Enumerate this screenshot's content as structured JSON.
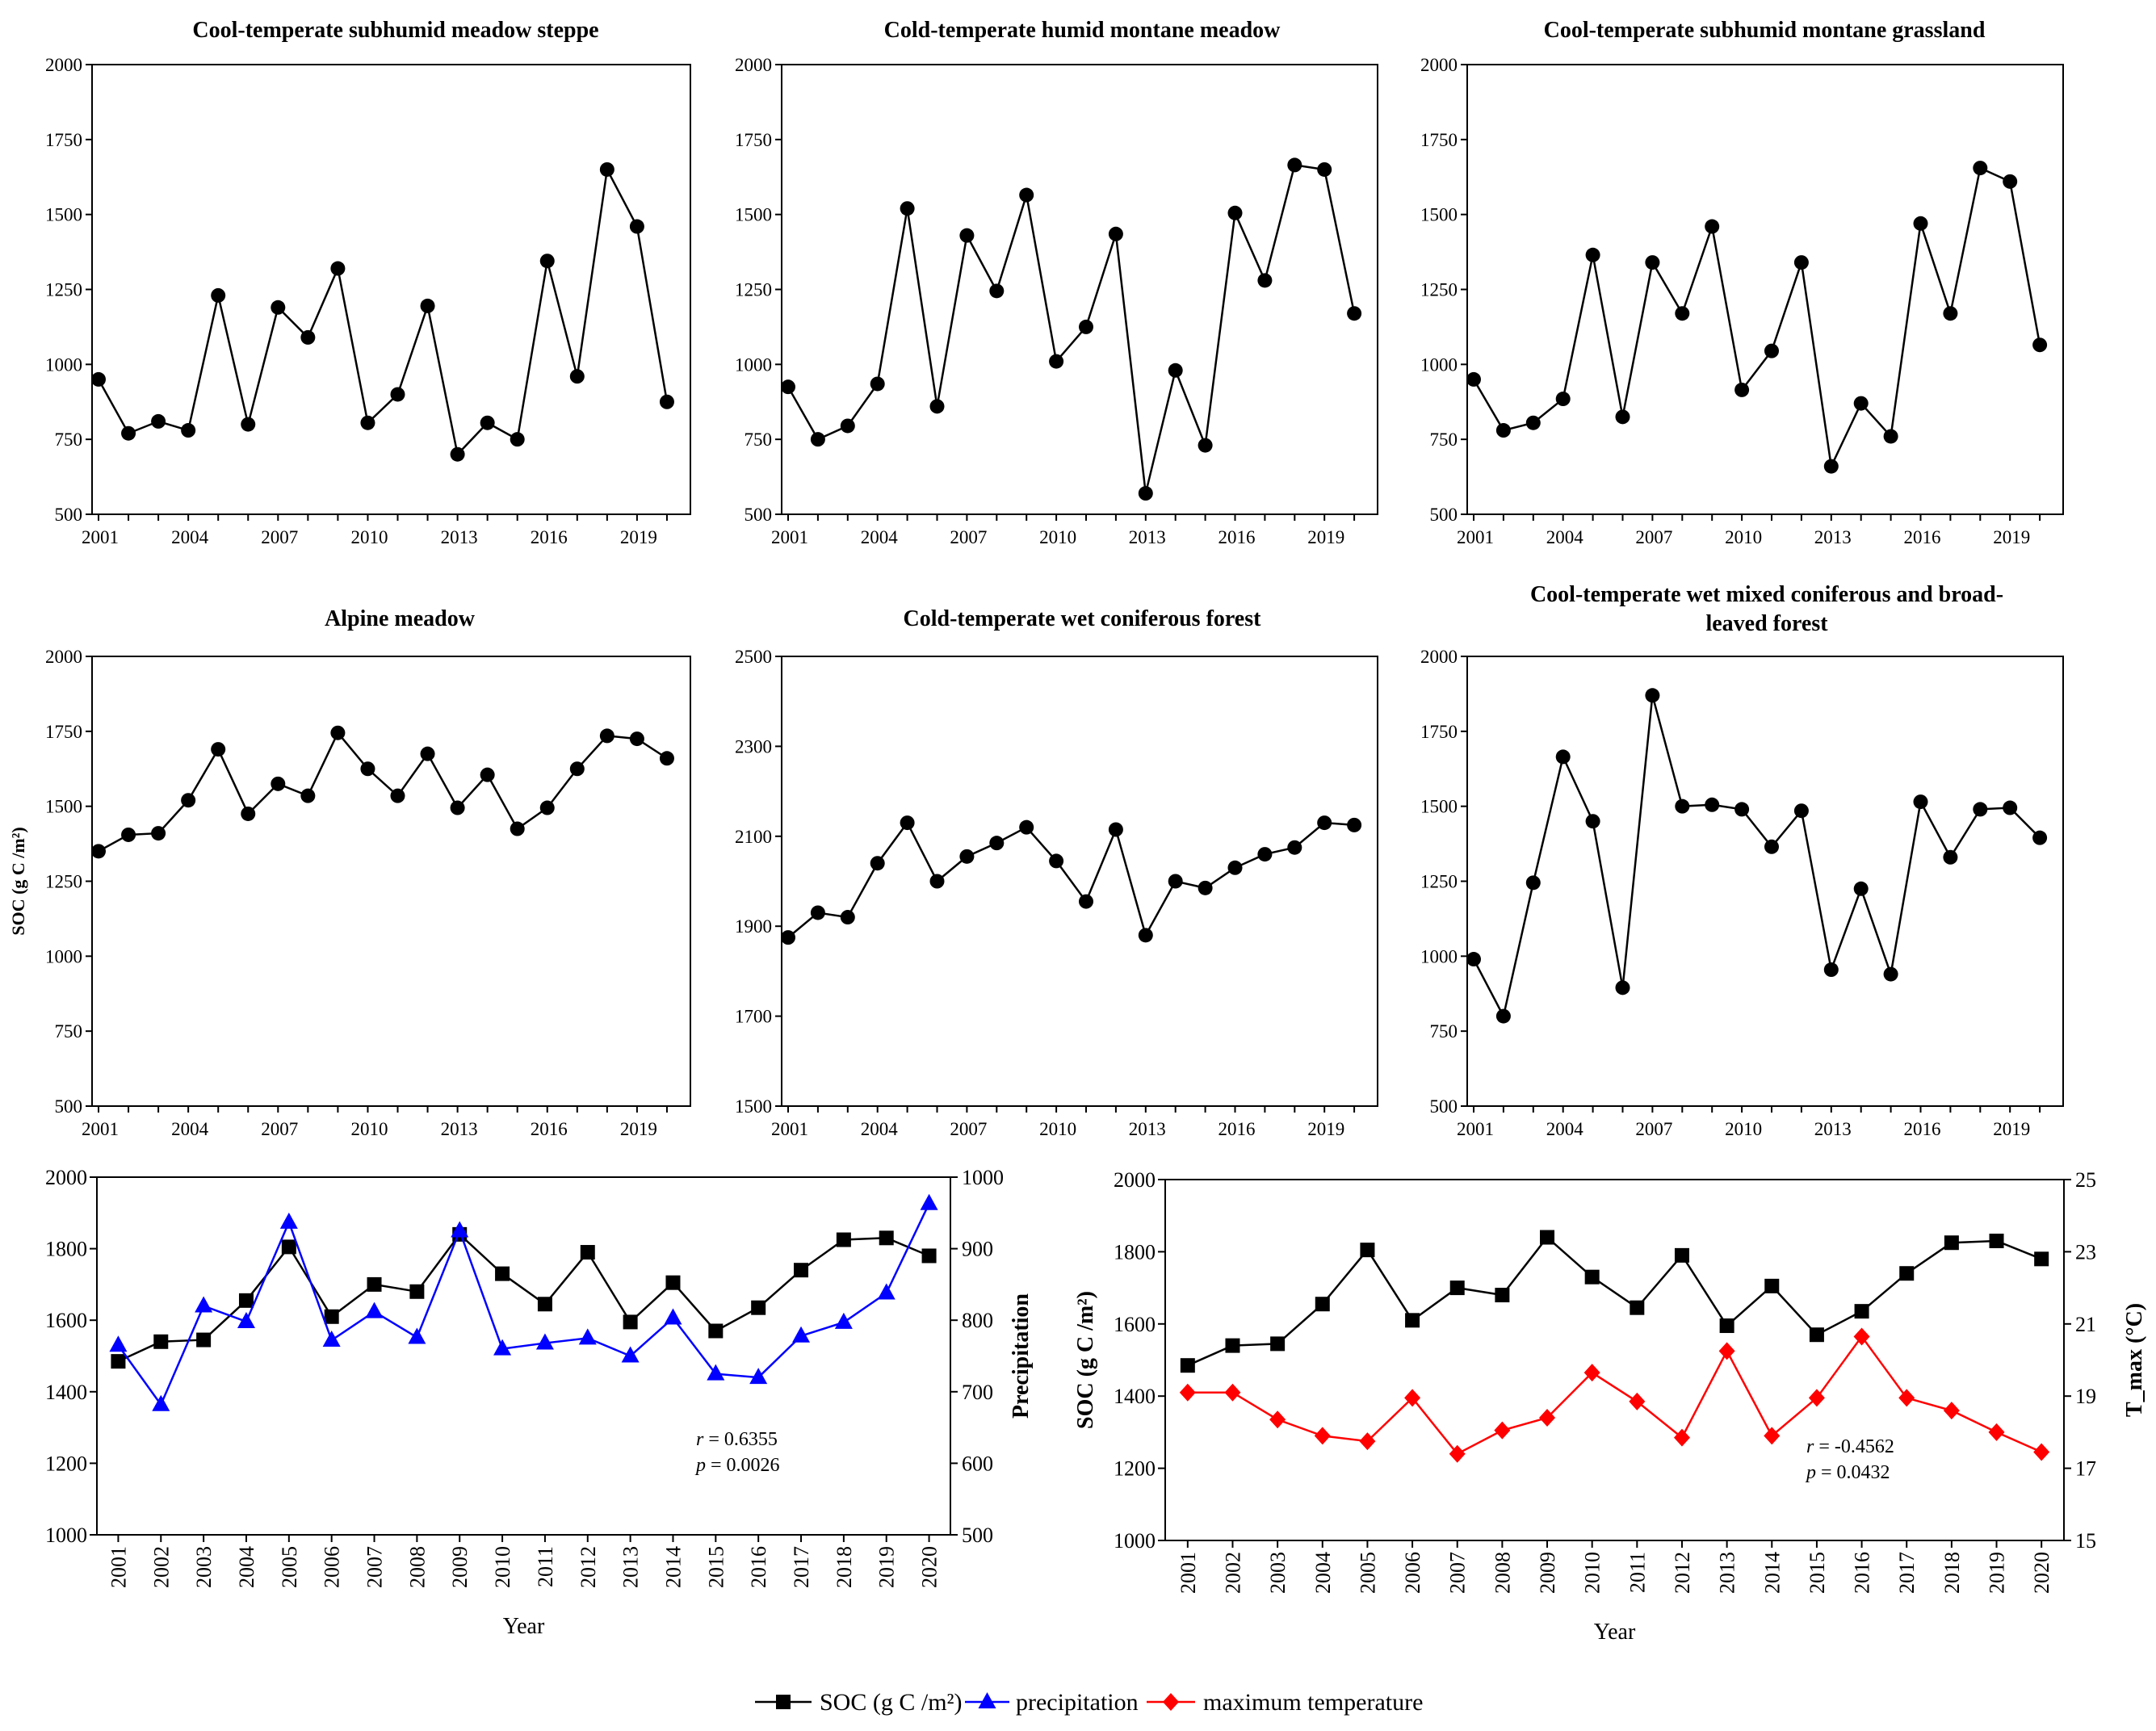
{
  "colors": {
    "soc": "#000000",
    "precipitation": "#0000ff",
    "max_temperature": "#ff0000"
  },
  "legend": [
    "SOC (g C /m²)",
    "precipitation",
    "maximum temperature"
  ],
  "chart_data": [
    {
      "type": "line",
      "title": "Cool-temperate subhumid meadow steppe",
      "xlabel": "",
      "ylabel": "",
      "x": [
        2001,
        2002,
        2003,
        2004,
        2005,
        2006,
        2007,
        2008,
        2009,
        2010,
        2011,
        2012,
        2013,
        2014,
        2015,
        2016,
        2017,
        2018,
        2019,
        2020
      ],
      "xticks": [
        "2001",
        "2004",
        "2007",
        "2010",
        "2013",
        "2016",
        "2019"
      ],
      "ylim": [
        500,
        2000
      ],
      "yticks": [
        "500",
        "750",
        "1000",
        "1250",
        "1500",
        "1750",
        "2000"
      ],
      "series": [
        {
          "name": "SOC (g C /m²)",
          "values": [
            950,
            770,
            810,
            780,
            1230,
            800,
            1190,
            1090,
            1320,
            805,
            900,
            1195,
            700,
            805,
            750,
            1345,
            960,
            1650,
            1460,
            875
          ]
        }
      ]
    },
    {
      "type": "line",
      "title": "Cold-temperate humid montane meadow",
      "xlabel": "",
      "ylabel": "",
      "x": [
        2001,
        2002,
        2003,
        2004,
        2005,
        2006,
        2007,
        2008,
        2009,
        2010,
        2011,
        2012,
        2013,
        2014,
        2015,
        2016,
        2017,
        2018,
        2019,
        2020
      ],
      "xticks": [
        "2001",
        "2004",
        "2007",
        "2010",
        "2013",
        "2016",
        "2019"
      ],
      "ylim": [
        500,
        2000
      ],
      "yticks": [
        "500",
        "750",
        "1000",
        "1250",
        "1500",
        "1750",
        "2000"
      ],
      "series": [
        {
          "name": "SOC (g C /m²)",
          "values": [
            925,
            750,
            795,
            935,
            1520,
            860,
            1430,
            1245,
            1565,
            1010,
            1125,
            1435,
            570,
            980,
            730,
            1505,
            1280,
            1665,
            1650,
            1170
          ]
        }
      ]
    },
    {
      "type": "line",
      "title": "Cool-temperate subhumid montane grassland",
      "xlabel": "",
      "ylabel": "",
      "x": [
        2001,
        2002,
        2003,
        2004,
        2005,
        2006,
        2007,
        2008,
        2009,
        2010,
        2011,
        2012,
        2013,
        2014,
        2015,
        2016,
        2017,
        2018,
        2019,
        2020
      ],
      "xticks": [
        "2001",
        "2004",
        "2007",
        "2010",
        "2013",
        "2016",
        "2019"
      ],
      "ylim": [
        500,
        2000
      ],
      "yticks": [
        "500",
        "750",
        "1000",
        "1250",
        "1500",
        "1750",
        "2000"
      ],
      "series": [
        {
          "name": "SOC (g C /m²)",
          "values": [
            950,
            780,
            805,
            885,
            1365,
            825,
            1340,
            1170,
            1460,
            915,
            1045,
            1340,
            660,
            870,
            760,
            1470,
            1170,
            1655,
            1610,
            1065
          ]
        }
      ]
    },
    {
      "type": "line",
      "title": "Alpine meadow",
      "xlabel": "",
      "ylabel": "SOC (g C /m²)",
      "x": [
        2001,
        2002,
        2003,
        2004,
        2005,
        2006,
        2007,
        2008,
        2009,
        2010,
        2011,
        2012,
        2013,
        2014,
        2015,
        2016,
        2017,
        2018,
        2019,
        2020
      ],
      "xticks": [
        "2001",
        "2004",
        "2007",
        "2010",
        "2013",
        "2016",
        "2019"
      ],
      "ylim": [
        500,
        2000
      ],
      "yticks": [
        "500",
        "750",
        "1000",
        "1250",
        "1500",
        "1750",
        "2000"
      ],
      "series": [
        {
          "name": "SOC (g C /m²)",
          "values": [
            1350,
            1405,
            1410,
            1520,
            1690,
            1475,
            1575,
            1535,
            1745,
            1625,
            1535,
            1675,
            1495,
            1605,
            1425,
            1495,
            1625,
            1735,
            1725,
            1660
          ]
        }
      ]
    },
    {
      "type": "line",
      "title": "Cold-temperate wet coniferous forest",
      "xlabel": "",
      "ylabel": "",
      "x": [
        2001,
        2002,
        2003,
        2004,
        2005,
        2006,
        2007,
        2008,
        2009,
        2010,
        2011,
        2012,
        2013,
        2014,
        2015,
        2016,
        2017,
        2018,
        2019,
        2020
      ],
      "xticks": [
        "2001",
        "2004",
        "2007",
        "2010",
        "2013",
        "2016",
        "2019"
      ],
      "ylim": [
        1500,
        2500
      ],
      "yticks": [
        "1500",
        "1700",
        "1900",
        "2100",
        "2300",
        "2500"
      ],
      "series": [
        {
          "name": "SOC (g C /m²)",
          "values": [
            1875,
            1930,
            1920,
            2040,
            2130,
            2000,
            2055,
            2085,
            2120,
            2045,
            1955,
            2115,
            1880,
            2000,
            1985,
            2030,
            2060,
            2075,
            2130,
            2125
          ]
        }
      ]
    },
    {
      "type": "line",
      "title": "Cool-temperate wet mixed coniferous and broad-leaved forest",
      "title_lines": [
        "Cool-temperate wet mixed coniferous and broad-",
        "leaved forest"
      ],
      "xlabel": "",
      "ylabel": "",
      "x": [
        2001,
        2002,
        2003,
        2004,
        2005,
        2006,
        2007,
        2008,
        2009,
        2010,
        2011,
        2012,
        2013,
        2014,
        2015,
        2016,
        2017,
        2018,
        2019,
        2020
      ],
      "xticks": [
        "2001",
        "2004",
        "2007",
        "2010",
        "2013",
        "2016",
        "2019"
      ],
      "ylim": [
        500,
        2000
      ],
      "yticks": [
        "500",
        "750",
        "1000",
        "1250",
        "1500",
        "1750",
        "2000"
      ],
      "series": [
        {
          "name": "SOC (g C /m²)",
          "values": [
            990,
            800,
            1245,
            1665,
            1450,
            895,
            1870,
            1500,
            1505,
            1490,
            1365,
            1485,
            955,
            1225,
            940,
            1515,
            1330,
            1490,
            1495,
            1395
          ]
        }
      ]
    },
    {
      "type": "line",
      "title": "",
      "xlabel": "Year",
      "ylabel": "",
      "ylabel_right": "Precipitation",
      "x": [
        2001,
        2002,
        2003,
        2004,
        2005,
        2006,
        2007,
        2008,
        2009,
        2010,
        2011,
        2012,
        2013,
        2014,
        2015,
        2016,
        2017,
        2018,
        2019,
        2020
      ],
      "xticks": [
        "2001",
        "2002",
        "2003",
        "2004",
        "2005",
        "2006",
        "2007",
        "2008",
        "2009",
        "2010",
        "2011",
        "2012",
        "2013",
        "2014",
        "2015",
        "2016",
        "2017",
        "2018",
        "2019",
        "2020"
      ],
      "ylim": [
        1000,
        2000
      ],
      "yticks": [
        "1000",
        "1200",
        "1400",
        "1600",
        "1800",
        "2000"
      ],
      "ylim_right": [
        500,
        1000
      ],
      "yticks_right": [
        "500",
        "600",
        "700",
        "800",
        "900",
        "1000"
      ],
      "annotation": {
        "r_label": "r",
        "r_value": " = 0.6355",
        "p_label": "p",
        "p_value": " = 0.0026"
      },
      "series": [
        {
          "name": "SOC (g C /m²)",
          "axis": "left",
          "marker": "square",
          "values": [
            1485,
            1540,
            1545,
            1655,
            1805,
            1610,
            1700,
            1680,
            1840,
            1730,
            1645,
            1790,
            1595,
            1705,
            1570,
            1635,
            1740,
            1825,
            1830,
            1780
          ]
        },
        {
          "name": "precipitation",
          "axis": "right",
          "marker": "triangle",
          "values": [
            765,
            682,
            820,
            798,
            937,
            772,
            812,
            776,
            925,
            760,
            768,
            775,
            750,
            803,
            725,
            720,
            778,
            797,
            838,
            963
          ]
        }
      ]
    },
    {
      "type": "line",
      "title": "",
      "xlabel": "Year",
      "ylabel": "SOC (g C /m²)",
      "ylabel_right": "T_max (°C)",
      "x": [
        2001,
        2002,
        2003,
        2004,
        2005,
        2006,
        2007,
        2008,
        2009,
        2010,
        2011,
        2012,
        2013,
        2014,
        2015,
        2016,
        2017,
        2018,
        2019,
        2020
      ],
      "xticks": [
        "2001",
        "2002",
        "2003",
        "2004",
        "2005",
        "2006",
        "2007",
        "2008",
        "2009",
        "2010",
        "2011",
        "2012",
        "2013",
        "2014",
        "2015",
        "2016",
        "2017",
        "2018",
        "2019",
        "2020"
      ],
      "ylim": [
        1000,
        2000
      ],
      "yticks": [
        "1000",
        "1200",
        "1400",
        "1600",
        "1800",
        "2000"
      ],
      "ylim_right": [
        15,
        25
      ],
      "yticks_right": [
        "15",
        "17",
        "19",
        "21",
        "23",
        "25"
      ],
      "annotation": {
        "r_label": "r",
        "r_value": " = -0.4562",
        "p_label": "p",
        "p_value": " = 0.0432"
      },
      "series": [
        {
          "name": "SOC (g C /m²)",
          "axis": "left",
          "marker": "square",
          "values": [
            1485,
            1540,
            1545,
            1655,
            1805,
            1610,
            1700,
            1680,
            1840,
            1730,
            1645,
            1790,
            1595,
            1705,
            1570,
            1635,
            1740,
            1825,
            1830,
            1780
          ]
        },
        {
          "name": "maximum temperature",
          "axis": "right",
          "marker": "diamond",
          "values": [
            19.1,
            19.1,
            18.35,
            17.9,
            17.75,
            18.95,
            17.4,
            18.05,
            18.4,
            19.65,
            18.85,
            17.85,
            20.25,
            17.9,
            18.95,
            20.65,
            18.95,
            18.6,
            18.0,
            17.45
          ]
        }
      ]
    }
  ]
}
